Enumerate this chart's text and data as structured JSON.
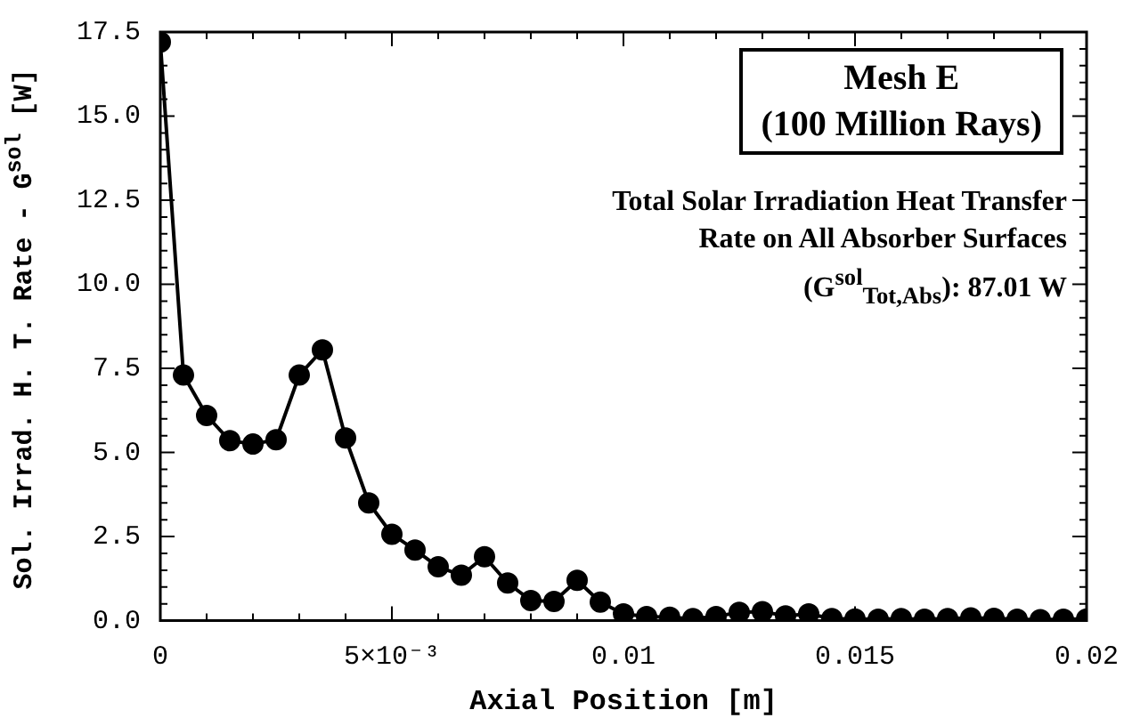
{
  "chart_data": {
    "type": "line",
    "xlabel": "Axial Position [m]",
    "ylabel": "Sol. Irrad. H. T. Rate - G$^{sol}$ [W]",
    "annotations": [
      "Mesh E\n(100 Million Rays)",
      "Total Solar Irradiation Heat Transfer Rate on All Absorber Surfaces (G$^{sol}$$_{Tot,Abs}$): 87.01 W"
    ],
    "x": [
      0,
      0.0005,
      0.001,
      0.0015,
      0.002,
      0.0025,
      0.003,
      0.0035,
      0.004,
      0.0045,
      0.005,
      0.0055,
      0.006,
      0.0065,
      0.007,
      0.0075,
      0.008,
      0.0085,
      0.009,
      0.0095,
      0.01,
      0.0105,
      0.011,
      0.0115,
      0.012,
      0.0125,
      0.013,
      0.0135,
      0.014,
      0.0145,
      0.015,
      0.0155,
      0.016,
      0.0165,
      0.017,
      0.0175,
      0.018,
      0.0185,
      0.019,
      0.0195,
      0.02
    ],
    "series": [
      {
        "color": "#000000",
        "values": [
          17.2,
          7.3,
          6.1,
          5.35,
          5.25,
          5.38,
          7.3,
          8.05,
          5.43,
          3.5,
          2.57,
          2.1,
          1.6,
          1.35,
          1.9,
          1.12,
          0.6,
          0.57,
          1.2,
          0.55,
          0.2,
          0.12,
          0.1,
          0.06,
          0.12,
          0.25,
          0.27,
          0.14,
          0.2,
          0.06,
          0.05,
          0.04,
          0.06,
          0.04,
          0.06,
          0.08,
          0.07,
          0.04,
          0.03,
          0.04,
          0.05
        ]
      }
    ],
    "xlim": [
      0,
      0.02
    ],
    "ylim": [
      0,
      17.5
    ],
    "xticks": [
      0,
      {
        "value": 0.001,
        "label": null
      },
      {
        "value": 0.002,
        "label": null
      },
      {
        "value": 0.003,
        "label": null
      },
      {
        "value": 0.004,
        "label": null
      },
      {
        "value": 0.005,
        "label": "5×10⁻³"
      },
      {
        "value": 0.006,
        "label": null
      },
      {
        "value": 0.007,
        "label": null
      },
      {
        "value": 0.008,
        "label": null
      },
      {
        "value": 0.009,
        "label": null
      },
      0.01,
      {
        "value": 0.011,
        "label": null
      },
      {
        "value": 0.012,
        "label": null
      },
      {
        "value": 0.013,
        "label": null
      },
      {
        "value": 0.014,
        "label": null
      },
      0.015,
      {
        "value": 0.016,
        "label": null
      },
      {
        "value": 0.017,
        "label": null
      },
      {
        "value": 0.018,
        "label": null
      },
      {
        "value": 0.019,
        "label": null
      },
      0.02
    ],
    "yticks": [
      {
        "value": 0,
        "label": "0.0"
      },
      {
        "value": 0.5,
        "label": null
      },
      {
        "value": 1,
        "label": null
      },
      {
        "value": 1.5,
        "label": null
      },
      {
        "value": 2,
        "label": null
      },
      {
        "value": 2.5,
        "label": "2.5"
      },
      {
        "value": 3,
        "label": null
      },
      {
        "value": 3.5,
        "label": null
      },
      {
        "value": 4,
        "label": null
      },
      {
        "value": 4.5,
        "label": null
      },
      {
        "value": 5,
        "label": "5.0"
      },
      {
        "value": 5.5,
        "label": null
      },
      {
        "value": 6,
        "label": null
      },
      {
        "value": 6.5,
        "label": null
      },
      {
        "value": 7,
        "label": null
      },
      {
        "value": 7.5,
        "label": "7.5"
      },
      {
        "value": 8,
        "label": null
      },
      {
        "value": 8.5,
        "label": null
      },
      {
        "value": 9,
        "label": null
      },
      {
        "value": 9.5,
        "label": null
      },
      {
        "value": 10,
        "label": "10.0"
      },
      {
        "value": 10.5,
        "label": null
      },
      {
        "value": 11,
        "label": null
      },
      {
        "value": 11.5,
        "label": null
      },
      {
        "value": 12,
        "label": null
      },
      {
        "value": 12.5,
        "label": "12.5"
      },
      {
        "value": 13,
        "label": null
      },
      {
        "value": 13.5,
        "label": null
      },
      {
        "value": 14,
        "label": null
      },
      {
        "value": 14.5,
        "label": null
      },
      {
        "value": 15,
        "label": "15.0"
      },
      {
        "value": 15.5,
        "label": null
      },
      {
        "value": 16,
        "label": null
      },
      {
        "value": 16.5,
        "label": null
      },
      {
        "value": 17,
        "label": null
      },
      {
        "value": 17.5,
        "label": "17.5"
      }
    ],
    "grid": false,
    "legend": false,
    "marker": "circle",
    "line_style": "solid"
  }
}
